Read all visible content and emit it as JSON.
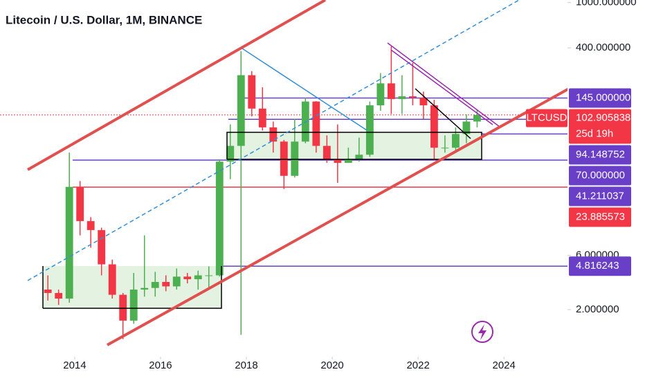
{
  "chart_data": {
    "type": "candlestick",
    "title": "Litecoin / U.S. Dollar, 1M, BINANCE",
    "x": [
      2013.25,
      2013.5,
      2013.75,
      2014.0,
      2014.25,
      2014.5,
      2014.75,
      2015.0,
      2015.25,
      2015.5,
      2015.75,
      2016.0,
      2016.25,
      2016.5,
      2016.75,
      2017.0,
      2017.25,
      2017.5,
      2017.75,
      2018.0,
      2018.25,
      2018.5,
      2018.75,
      2019.0,
      2019.25,
      2019.5,
      2019.75,
      2020.0,
      2020.25,
      2020.5,
      2020.75,
      2021.0,
      2021.25,
      2021.5,
      2021.75,
      2022.0,
      2022.25,
      2022.5,
      2022.75,
      2023.0,
      2023.25
    ],
    "open": [
      3.0,
      2.8,
      2.5,
      24,
      12,
      10,
      5,
      2.7,
      1.6,
      3.0,
      3.1,
      3.5,
      3.2,
      3.9,
      3.7,
      4.0,
      4.0,
      40,
      55,
      230,
      117,
      80,
      60,
      30,
      60,
      135,
      55,
      42,
      39,
      42,
      46,
      125,
      195,
      142,
      150,
      146,
      125,
      53,
      53,
      70,
      90
    ],
    "high": [
      4,
      3.0,
      48,
      27,
      13,
      10.5,
      5.5,
      2.8,
      4.2,
      9,
      4.3,
      4,
      4.6,
      4.2,
      4.4,
      4.8,
      42,
      85,
      375,
      250,
      180,
      90,
      62,
      95,
      146,
      136,
      68,
      85,
      53,
      65,
      135,
      240,
      412,
      230,
      295,
      165,
      140,
      68,
      80,
      104,
      115
    ],
    "low": [
      2.4,
      2.2,
      2.3,
      9,
      7,
      4,
      2.5,
      1.1,
      1.5,
      2.6,
      2.6,
      2.9,
      3.0,
      3.4,
      3.0,
      3.0,
      3.9,
      28,
      1.2,
      100,
      75,
      48,
      23,
      29,
      58,
      48,
      39,
      26,
      39,
      40,
      44,
      112,
      105,
      105,
      125,
      95,
      41,
      48,
      50,
      58,
      80
    ],
    "close": [
      2.8,
      2.5,
      24,
      12,
      10,
      5,
      2.7,
      1.6,
      3.0,
      3.1,
      3.5,
      3.2,
      3.9,
      3.7,
      4.0,
      4.0,
      40,
      55,
      230,
      117,
      80,
      60,
      30,
      60,
      135,
      55,
      42,
      39,
      42,
      46,
      125,
      195,
      142,
      150,
      146,
      125,
      53,
      53,
      70,
      90,
      103
    ],
    "up_color": "#4caf50",
    "down_color": "#f23645",
    "log_scale": true,
    "ylim": [
      0.77,
      1054
    ],
    "yticks": [
      {
        "value": 1000,
        "label": "1000.000000"
      },
      {
        "value": 400,
        "label": "400.000000"
      },
      {
        "value": 6,
        "label": "6.000000"
      },
      {
        "value": 2,
        "label": "2.000000"
      }
    ],
    "xlim": [
      2012.26,
      2025.48
    ],
    "xticks": [
      2014,
      2016,
      2018,
      2020,
      2022,
      2024
    ],
    "levels": [
      {
        "price": {
          "value": 145,
          "label": "145.000000"
        },
        "color": "#6a3fc8"
      },
      {
        "price": 94.148752,
        "color": "#6a3fc8"
      },
      {
        "price": {
          "value": 70,
          "label": "70.000000"
        },
        "color": "#6a3fc8"
      },
      {
        "price": 41.211037,
        "color": "#6a3fc8"
      },
      {
        "price": 23.885573,
        "color": "#f23645"
      },
      {
        "price": 4.816243,
        "color": "#6a3fc8"
      }
    ],
    "last": {
      "symbol": "LTCUSD",
      "price": 102.905838,
      "countdown": "25d 19h",
      "color": "#f23645"
    }
  }
}
